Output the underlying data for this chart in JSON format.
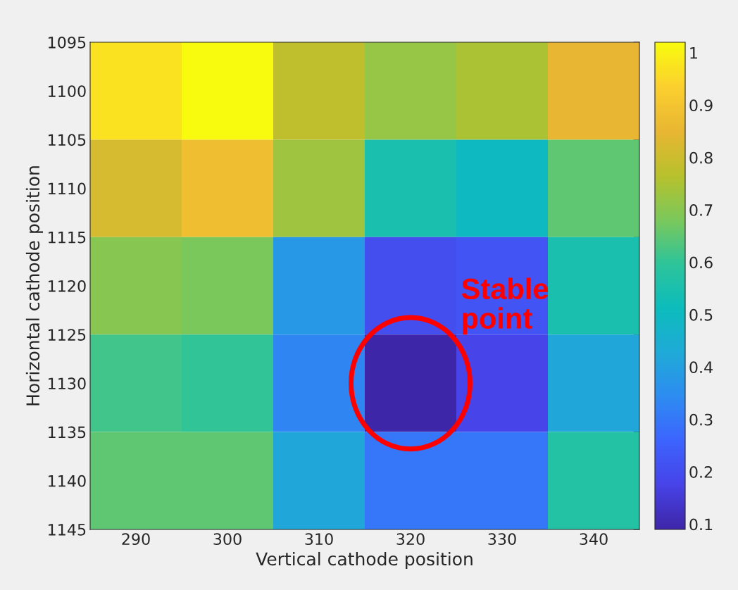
{
  "chart_data": {
    "type": "heatmap",
    "xlabel": "Vertical cathode position",
    "ylabel": "Horizontal cathode position",
    "xlim": [
      285,
      345
    ],
    "xticks": [
      290,
      300,
      310,
      320,
      330,
      340
    ],
    "ylim": [
      1145,
      1095
    ],
    "yticks": [
      1095,
      1100,
      1105,
      1110,
      1115,
      1120,
      1125,
      1130,
      1135,
      1140,
      1145
    ],
    "cells": [
      [
        0.97,
        1.02,
        0.78,
        0.72,
        0.75,
        0.85
      ],
      [
        0.82,
        0.88,
        0.73,
        0.55,
        0.5,
        0.65
      ],
      [
        0.7,
        0.68,
        0.38,
        0.2,
        0.22,
        0.55
      ],
      [
        0.62,
        0.6,
        0.33,
        0.09,
        0.18,
        0.42
      ],
      [
        0.65,
        0.65,
        0.42,
        0.3,
        0.3,
        0.57
      ]
    ],
    "clim": [
      0.09,
      1.02
    ],
    "cticks": [
      0.1,
      0.2,
      0.3,
      0.4,
      0.5,
      0.6,
      0.7,
      0.8,
      0.9,
      1
    ],
    "annotations": [
      "Stable point"
    ]
  }
}
